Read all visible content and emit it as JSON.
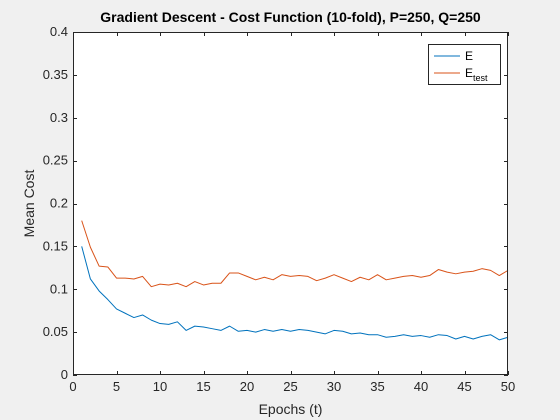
{
  "colors": {
    "background": "#f0f0f0",
    "axes_background": "#ffffff",
    "axis": "#262626",
    "series_E": "#0072bd",
    "series_Etest": "#d95319"
  },
  "chart_data": {
    "type": "line",
    "title": "Gradient Descent - Cost Function (10-fold), P=250, Q=250",
    "xlabel": "Epochs (t)",
    "ylabel": "Mean Cost",
    "xlim": [
      0,
      50
    ],
    "ylim": [
      0,
      0.4
    ],
    "xticks": [
      0,
      5,
      10,
      15,
      20,
      25,
      30,
      35,
      40,
      45,
      50
    ],
    "yticks": [
      0,
      0.05,
      0.1,
      0.15,
      0.2,
      0.25,
      0.3,
      0.35,
      0.4
    ],
    "grid": false,
    "legend_position": "top-right",
    "x": [
      1,
      2,
      3,
      4,
      5,
      6,
      7,
      8,
      9,
      10,
      11,
      12,
      13,
      14,
      15,
      16,
      17,
      18,
      19,
      20,
      21,
      22,
      23,
      24,
      25,
      26,
      27,
      28,
      29,
      30,
      31,
      32,
      33,
      34,
      35,
      36,
      37,
      38,
      39,
      40,
      41,
      42,
      43,
      44,
      45,
      46,
      47,
      48,
      49,
      50
    ],
    "series": [
      {
        "name": "E",
        "legend_main": "E",
        "legend_sub": "",
        "color": "#0072bd",
        "values": [
          0.15,
          0.112,
          0.098,
          0.088,
          0.077,
          0.072,
          0.067,
          0.07,
          0.064,
          0.06,
          0.059,
          0.062,
          0.052,
          0.057,
          0.056,
          0.054,
          0.052,
          0.057,
          0.051,
          0.052,
          0.05,
          0.053,
          0.051,
          0.053,
          0.051,
          0.053,
          0.052,
          0.05,
          0.048,
          0.052,
          0.051,
          0.048,
          0.049,
          0.047,
          0.047,
          0.044,
          0.045,
          0.047,
          0.045,
          0.046,
          0.044,
          0.047,
          0.046,
          0.042,
          0.045,
          0.042,
          0.045,
          0.047,
          0.041,
          0.044
        ]
      },
      {
        "name": "E test",
        "legend_main": "E",
        "legend_sub": "test",
        "color": "#d95319",
        "values": [
          0.18,
          0.149,
          0.127,
          0.126,
          0.113,
          0.113,
          0.112,
          0.115,
          0.103,
          0.106,
          0.105,
          0.107,
          0.103,
          0.109,
          0.105,
          0.107,
          0.107,
          0.119,
          0.119,
          0.115,
          0.111,
          0.114,
          0.111,
          0.117,
          0.115,
          0.116,
          0.115,
          0.11,
          0.113,
          0.117,
          0.113,
          0.109,
          0.114,
          0.111,
          0.117,
          0.111,
          0.113,
          0.115,
          0.116,
          0.114,
          0.116,
          0.123,
          0.12,
          0.118,
          0.12,
          0.121,
          0.124,
          0.122,
          0.116,
          0.122
        ]
      }
    ]
  }
}
